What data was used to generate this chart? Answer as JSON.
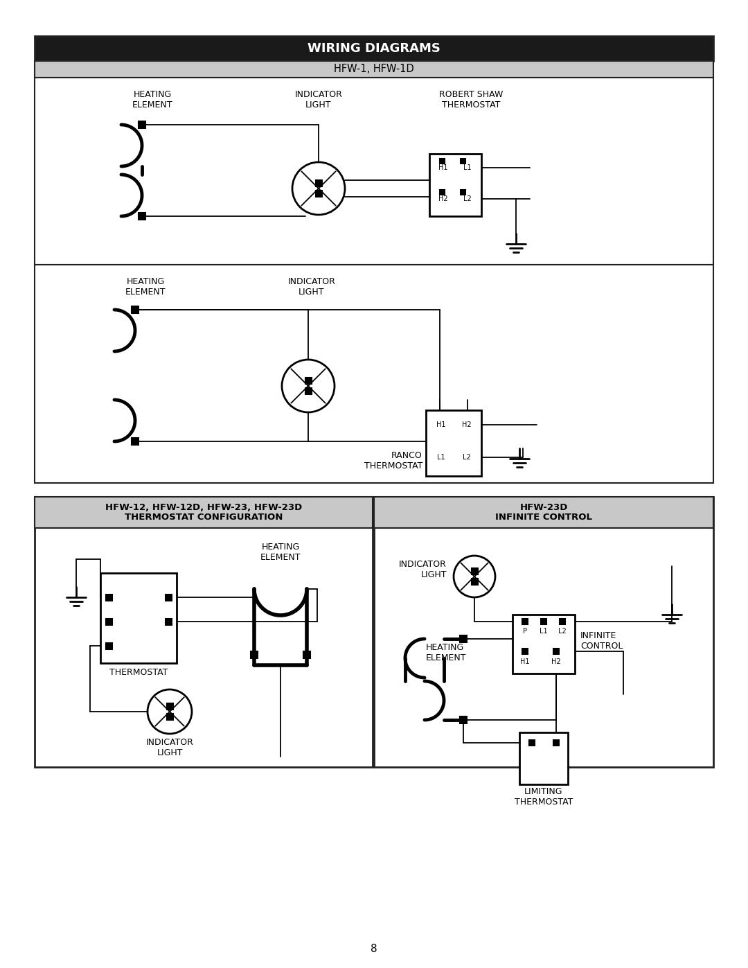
{
  "title": "WIRING DIAGRAMS",
  "subtitle1": "HFW-1, HFW-1D",
  "page_number": "8",
  "bg_color": "#ffffff",
  "title_bg": "#1a1a1a",
  "title_color": "#ffffff",
  "subtitle_bg": "#c8c8c8",
  "subtitle_color": "#000000",
  "section3_title_left": "HFW-12, HFW-12D, HFW-23, HFW-23D\nTHERMOSTAT CONFIGURATION",
  "section3_title_right": "HFW-23D\nINFINITE CONTROL",
  "line_color": "#000000",
  "border_color": "#222222"
}
